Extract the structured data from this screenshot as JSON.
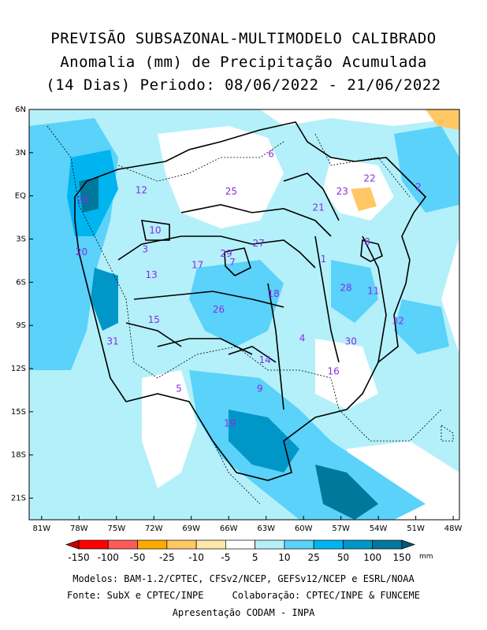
{
  "title": {
    "line1": "PREVISÃO SUBSAZONAL-MULTIMODELO CALIBRADO",
    "line2": "Anomalia (mm) de Precipitação Acumulada",
    "line3": "(14 Dias) Periodo: 08/06/2022 - 21/06/2022"
  },
  "axes": {
    "lat_labels": [
      "6N",
      "3N",
      "EQ",
      "3S",
      "6S",
      "9S",
      "12S",
      "15S",
      "18S",
      "21S"
    ],
    "lon_labels": [
      "81W",
      "78W",
      "75W",
      "72W",
      "69W",
      "66W",
      "63W",
      "60W",
      "57W",
      "54W",
      "51W",
      "48W"
    ],
    "lat_range": [
      -22.5,
      6
    ],
    "lon_range": [
      -82,
      -47.5
    ]
  },
  "basins": [
    {
      "id": "1",
      "lon": -58.4,
      "lat": -4.4
    },
    {
      "id": "2",
      "lon": -50.8,
      "lat": 0.6
    },
    {
      "id": "3",
      "lon": -72.7,
      "lat": -3.7
    },
    {
      "id": "4",
      "lon": -60.1,
      "lat": -9.9
    },
    {
      "id": "5",
      "lon": -70.0,
      "lat": -13.4
    },
    {
      "id": "6",
      "lon": -62.6,
      "lat": 2.9
    },
    {
      "id": "7",
      "lon": -65.7,
      "lat": -4.6
    },
    {
      "id": "8",
      "lon": -54.9,
      "lat": -3.2
    },
    {
      "id": "9",
      "lon": -63.5,
      "lat": -13.4
    },
    {
      "id": "10",
      "lon": -71.9,
      "lat": -2.4
    },
    {
      "id": "11",
      "lon": -54.4,
      "lat": -6.6
    },
    {
      "id": "12",
      "lon": -73.0,
      "lat": 0.4
    },
    {
      "id": "13",
      "lon": -72.2,
      "lat": -5.5
    },
    {
      "id": "14",
      "lon": -63.1,
      "lat": -11.4
    },
    {
      "id": "15",
      "lon": -72.0,
      "lat": -8.6
    },
    {
      "id": "16",
      "lon": -57.6,
      "lat": -12.2
    },
    {
      "id": "17",
      "lon": -68.5,
      "lat": -4.8
    },
    {
      "id": "18",
      "lon": -62.4,
      "lat": -6.8
    },
    {
      "id": "19",
      "lon": -65.9,
      "lat": -15.8
    },
    {
      "id": "20",
      "lon": -77.8,
      "lat": -3.9
    },
    {
      "id": "21",
      "lon": -58.8,
      "lat": -0.8
    },
    {
      "id": "22",
      "lon": -54.7,
      "lat": 1.2
    },
    {
      "id": "23",
      "lon": -56.9,
      "lat": 0.3
    },
    {
      "id": "24",
      "lon": -77.7,
      "lat": -0.3
    },
    {
      "id": "25",
      "lon": -65.8,
      "lat": 0.3
    },
    {
      "id": "26",
      "lon": -66.8,
      "lat": -7.9
    },
    {
      "id": "27",
      "lon": -63.6,
      "lat": -3.3
    },
    {
      "id": "28",
      "lon": -56.6,
      "lat": -6.4
    },
    {
      "id": "29",
      "lon": -66.2,
      "lat": -4.0
    },
    {
      "id": "30",
      "lon": -56.2,
      "lat": -10.1
    },
    {
      "id": "31",
      "lon": -75.3,
      "lat": -10.1
    },
    {
      "id": "32",
      "lon": -52.4,
      "lat": -8.7
    }
  ],
  "colorbar": {
    "labels": [
      "-150",
      "-100",
      "-50",
      "-25",
      "-10",
      "-5",
      "5",
      "10",
      "25",
      "50",
      "100",
      "150"
    ],
    "unit": "mm",
    "colors": [
      "#c80000",
      "#ff0000",
      "#ff5a5a",
      "#ffaa00",
      "#ffc864",
      "#ffe6aa",
      "#ffffff",
      "#b4f0fa",
      "#5ad2fa",
      "#00b4f0",
      "#0096c8",
      "#00789b",
      "#005a78"
    ]
  },
  "credits": {
    "line1": "Modelos: BAM-1.2/CPTEC, CFSv2/NCEP, GEFSv12/NCEP e ESRL/NOAA",
    "line2a": "Fonte: SubX e CPTEC/INPE",
    "line2b": "Colaboração: CPTEC/INPE & FUNCEME",
    "line3": "Apresentação CODAM - INPA"
  }
}
